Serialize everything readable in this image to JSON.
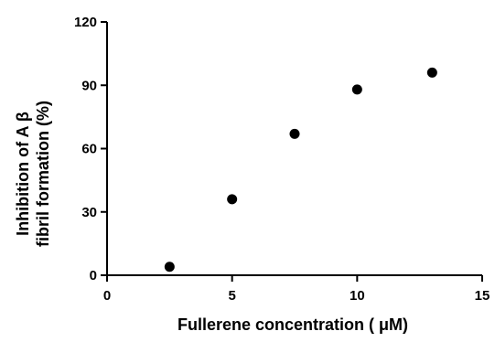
{
  "chart_data": {
    "type": "scatter",
    "xlabel": "Fullerene concentration ( μM)",
    "ylabel_line1": "Inhibition of A β",
    "ylabel_line2": "fibril formation (%)",
    "xlim": [
      0,
      15
    ],
    "ylim": [
      0,
      120
    ],
    "xticks": [
      0,
      5,
      10,
      15
    ],
    "yticks": [
      0,
      30,
      60,
      90,
      120
    ],
    "grid": false,
    "marker_color": "#000000",
    "points": [
      {
        "x": 2.5,
        "y": 4
      },
      {
        "x": 5,
        "y": 36
      },
      {
        "x": 7.5,
        "y": 67
      },
      {
        "x": 10,
        "y": 88
      },
      {
        "x": 13,
        "y": 96
      }
    ]
  }
}
